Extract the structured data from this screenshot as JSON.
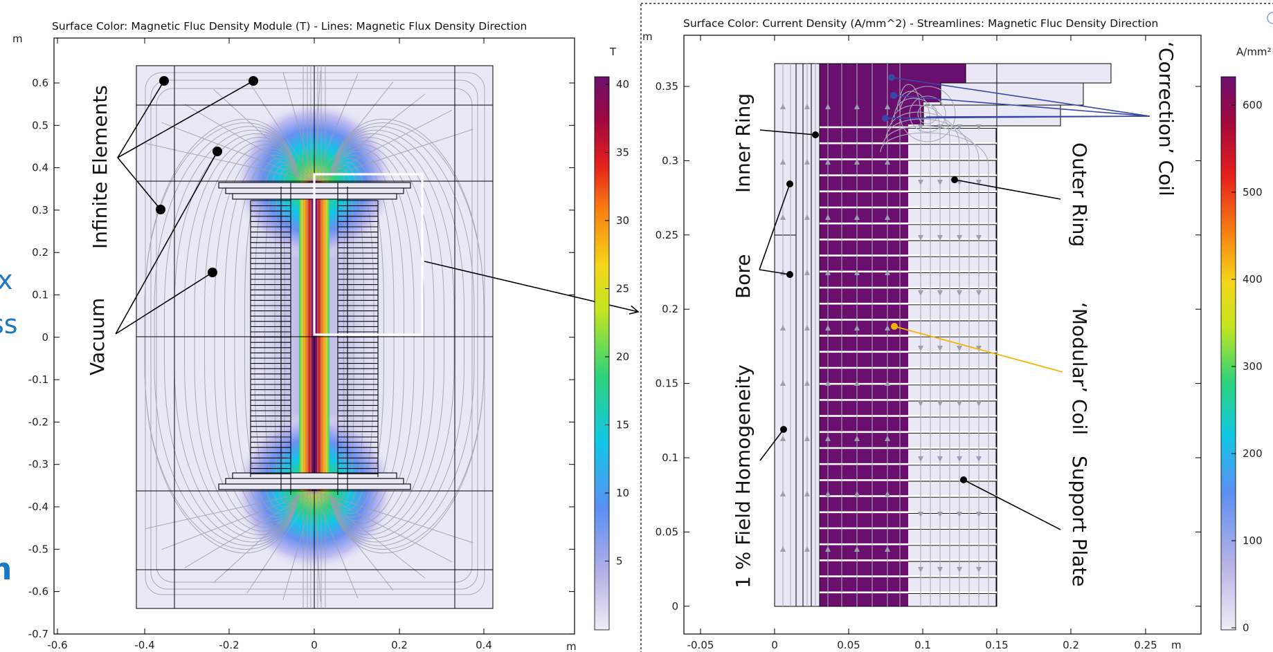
{
  "left_plot": {
    "title": "Surface Color: Magnetic Fluc Density Module  (T) -  Lines: Magnetic Flux Density Direction",
    "y_unit": "m",
    "x_unit": "m",
    "colorbar_unit": "T",
    "x_ticks": [
      "-0.6",
      "-0.4",
      "-0.2",
      "0",
      "0.2",
      "0.4"
    ],
    "y_ticks": [
      "0.6",
      "0.5",
      "0.4",
      "0.3",
      "0.2",
      "0.1",
      "0",
      "-0.1",
      "-0.2",
      "-0.3",
      "-0.4",
      "-0.5",
      "-0.6",
      "-0.7"
    ],
    "colorbar_ticks": [
      "40",
      "35",
      "30",
      "25",
      "20",
      "15",
      "10",
      "5"
    ],
    "labels": {
      "infinite_elements": "Infinite Elements",
      "vacuum": "Vacuum"
    }
  },
  "right_plot": {
    "title": "Surface Color: Current Density (A/mm^2) - Streamlines: Magnetic Fluc Density Direction",
    "y_unit": "m",
    "x_unit": "m",
    "colorbar_unit": "A/mm²",
    "x_ticks": [
      "-0.05",
      "0",
      "0.05",
      "0.1",
      "0.15",
      "0.2",
      "0.25"
    ],
    "y_ticks": [
      "0.35",
      "0.3",
      "0.25",
      "0.2",
      "0.15",
      "0.1",
      "0.05",
      "0"
    ],
    "colorbar_ticks": [
      "600",
      "500",
      "400",
      "300",
      "200",
      "100",
      "0"
    ],
    "labels": {
      "inner_ring": "Inner Ring",
      "bore": "Bore",
      "field_homogeneity": "1 %  Field Homogeneity",
      "correction_coil": "‘Correction’ Coil",
      "outer_ring": "Outer Ring",
      "modular_coil": "‘Modular’ Coil",
      "support_plate": "Support Plate"
    }
  },
  "left_edge_fragments": [
    "x",
    "ss",
    "n"
  ],
  "colors": {
    "accent_blue": "#1a78c2",
    "coil_purple": "#6b0f6e",
    "vacuum_fill": "#e9e8f4",
    "modular_leader": "#f5b400",
    "correction_leader": "#3848a8"
  }
}
